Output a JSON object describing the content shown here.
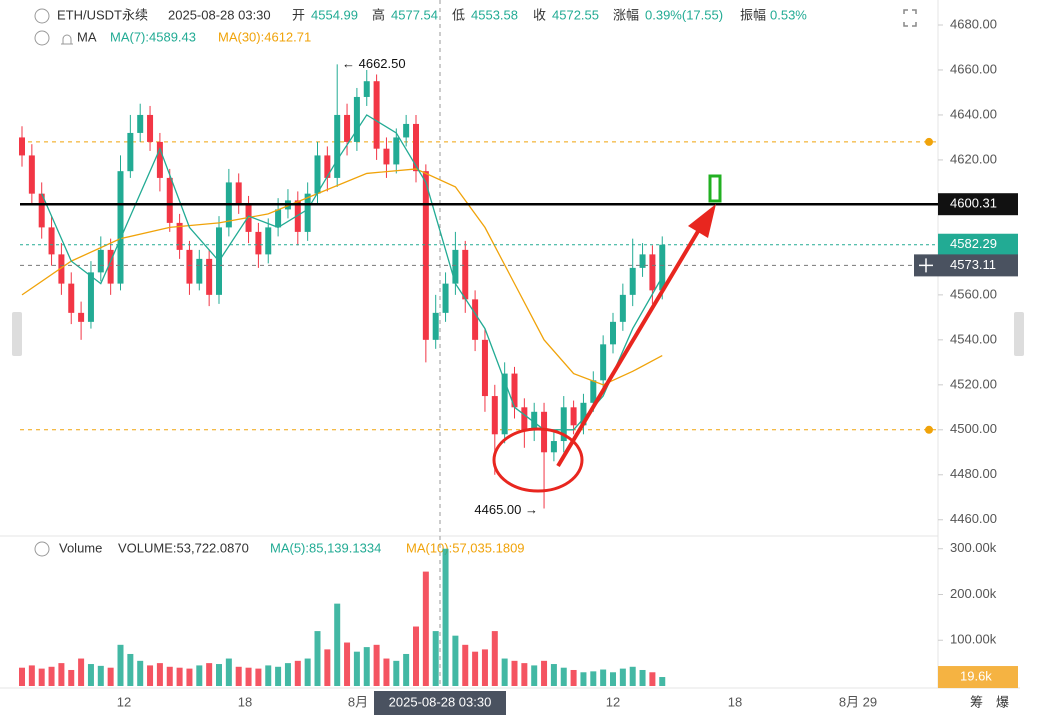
{
  "header": {
    "symbol": "ETH/USDT永续",
    "time": "2025-08-28 03:30",
    "fields": [
      {
        "label": "开",
        "value": "4554.99"
      },
      {
        "label": "高",
        "value": "4577.54"
      },
      {
        "label": "低",
        "value": "4553.58"
      },
      {
        "label": "收",
        "value": "4572.55"
      },
      {
        "label": "涨幅",
        "value": "0.39%(17.55)"
      },
      {
        "label": "振幅",
        "value": "0.53%"
      }
    ],
    "ma_title": "MA",
    "ma7_text": "MA(7):4589.43",
    "ma30_text": "MA(30):4612.71",
    "volume_title": "Volume",
    "volume_text": "VOLUME:53,722.0870",
    "vma5_text": "MA(5):85,139.1334",
    "vma10_text": "MA(10):57,035.1809"
  },
  "toolbar": [
    "筹",
    "爆"
  ],
  "chart_data": {
    "type": "candlestick",
    "up_color": "#22ab94",
    "down_color": "#f23645",
    "open": [
      4630,
      4622,
      4605,
      4590,
      4578,
      4565,
      4552,
      4548,
      4570,
      4580,
      4565,
      4615,
      4632,
      4640,
      4628,
      4612,
      4592,
      4580,
      4565,
      4576,
      4560,
      4590,
      4610,
      4600,
      4588,
      4578,
      4590,
      4598,
      4602,
      4588,
      4605,
      4622,
      4612,
      4640,
      4628,
      4648,
      4655,
      4625,
      4618,
      4630,
      4636,
      4615,
      4540,
      4552,
      4565,
      4580,
      4558,
      4540,
      4515,
      4498,
      4525,
      4510,
      4500,
      4508,
      4490,
      4495,
      4510,
      4502,
      4512,
      4522,
      4538,
      4548,
      4560,
      4572,
      4578,
      4562
    ],
    "high": [
      4635,
      4627,
      4610,
      4595,
      4583,
      4570,
      4557,
      4575,
      4586,
      4585,
      4622,
      4640,
      4645,
      4644,
      4632,
      4616,
      4596,
      4584,
      4580,
      4580,
      4595,
      4616,
      4614,
      4604,
      4592,
      4594,
      4603,
      4607,
      4606,
      4610,
      4628,
      4626,
      4662.5,
      4645,
      4652,
      4660,
      4658,
      4630,
      4634,
      4640,
      4640,
      4618,
      4560,
      4570,
      4588,
      4584,
      4562,
      4545,
      4520,
      4530,
      4528,
      4514,
      4512,
      4512,
      4500,
      4515,
      4513,
      4516,
      4526,
      4542,
      4552,
      4565,
      4585,
      4583,
      4582,
      4586
    ],
    "low": [
      4617,
      4600,
      4585,
      4573,
      4560,
      4547,
      4540,
      4545,
      4566,
      4560,
      4562,
      4612,
      4628,
      4624,
      4606,
      4588,
      4576,
      4560,
      4562,
      4555,
      4556,
      4586,
      4596,
      4583,
      4572,
      4574,
      4586,
      4594,
      4582,
      4584,
      4600,
      4606,
      4608,
      4622,
      4624,
      4644,
      4620,
      4612,
      4614,
      4626,
      4610,
      4530,
      4536,
      4548,
      4560,
      4552,
      4535,
      4508,
      4480,
      4494,
      4505,
      4492,
      4495,
      4465,
      4486,
      4490,
      4498,
      4498,
      4508,
      4518,
      4534,
      4544,
      4555,
      4568,
      4556,
      4558
    ],
    "close": [
      4622,
      4605,
      4590,
      4578,
      4565,
      4552,
      4548,
      4570,
      4580,
      4565,
      4615,
      4632,
      4640,
      4628,
      4612,
      4592,
      4580,
      4565,
      4576,
      4560,
      4590,
      4610,
      4600,
      4588,
      4578,
      4590,
      4598,
      4602,
      4588,
      4605,
      4622,
      4612,
      4640,
      4628,
      4648,
      4655,
      4625,
      4618,
      4630,
      4636,
      4615,
      4540,
      4552,
      4565,
      4580,
      4558,
      4540,
      4515,
      4498,
      4525,
      4510,
      4500,
      4508,
      4490,
      4495,
      4510,
      4502,
      4512,
      4522,
      4538,
      4548,
      4560,
      4572,
      4578,
      4562,
      4582.29
    ],
    "ylim": [
      4455,
      4690
    ],
    "yticks": [
      {
        "value": 4460,
        "label": "4460.00"
      },
      {
        "value": 4480,
        "label": "4480.00"
      },
      {
        "value": 4500,
        "label": "4500.00"
      },
      {
        "value": 4520,
        "label": "4520.00"
      },
      {
        "value": 4540,
        "label": "4540.00"
      },
      {
        "value": 4560,
        "label": "4560.00"
      },
      {
        "value": 4580,
        "label": "4580.00"
      },
      {
        "value": 4600,
        "label": "4600.00"
      },
      {
        "value": 4620,
        "label": "4620.00"
      },
      {
        "value": 4640,
        "label": "4640.00"
      },
      {
        "value": 4660,
        "label": "4660.00"
      },
      {
        "value": 4680,
        "label": "4680.00"
      }
    ],
    "ma7": {
      "color": "#22ab94",
      "x": [
        2,
        5,
        8,
        11,
        14,
        17,
        20,
        23,
        26,
        29,
        32,
        35,
        38,
        41,
        44,
        47,
        50,
        53,
        56,
        59,
        62,
        65
      ],
      "values": [
        4605,
        4575,
        4565,
        4595,
        4625,
        4590,
        4575,
        4595,
        4590,
        4598,
        4620,
        4640,
        4632,
        4610,
        4565,
        4545,
        4510,
        4500,
        4500,
        4515,
        4545,
        4568
      ]
    },
    "ma30": {
      "color": "#f0a30a",
      "x": [
        0,
        5,
        10,
        15,
        20,
        25,
        30,
        35,
        40,
        44,
        47,
        50,
        53,
        56,
        59,
        62,
        65
      ],
      "values": [
        4560,
        4575,
        4585,
        4590,
        4592,
        4596,
        4605,
        4614,
        4616,
        4608,
        4590,
        4565,
        4540,
        4525,
        4520,
        4526,
        4533
      ]
    },
    "alerts": [
      4628,
      4500
    ],
    "levels": {
      "black": 4600.31,
      "last": 4582.29,
      "cursor": 4573.11
    },
    "high_note": {
      "value": 4662.5,
      "label": "← 4662.50"
    },
    "low_note": {
      "value": 4465,
      "label": "4465.00 →"
    },
    "xticks": [
      "12",
      "18",
      "8月",
      "12",
      "18",
      "8月 29"
    ],
    "crosshair_label": "2025-08-28 03:30",
    "volume": {
      "values": [
        40000,
        45000,
        38000,
        42000,
        50000,
        35000,
        60000,
        48000,
        44000,
        40000,
        90000,
        70000,
        55000,
        45000,
        50000,
        42000,
        40000,
        38000,
        45000,
        50000,
        48000,
        60000,
        42000,
        40000,
        38000,
        45000,
        42000,
        50000,
        55000,
        60000,
        120000,
        80000,
        180000,
        95000,
        75000,
        85000,
        90000,
        60000,
        55000,
        70000,
        130000,
        250000,
        120000,
        300000,
        110000,
        90000,
        75000,
        80000,
        120000,
        60000,
        55000,
        50000,
        45000,
        55000,
        48000,
        40000,
        35000,
        30000,
        32000,
        36000,
        30000,
        38000,
        42000,
        35000,
        30000,
        19600
      ],
      "ylim": [
        0,
        330000
      ],
      "yticks": [
        {
          "value": 100000,
          "label": "100.00k"
        },
        {
          "value": 200000,
          "label": "200.00k"
        },
        {
          "value": 300000,
          "label": "300.00k"
        }
      ],
      "current": {
        "value": 19600,
        "label": "19.6k"
      }
    }
  }
}
